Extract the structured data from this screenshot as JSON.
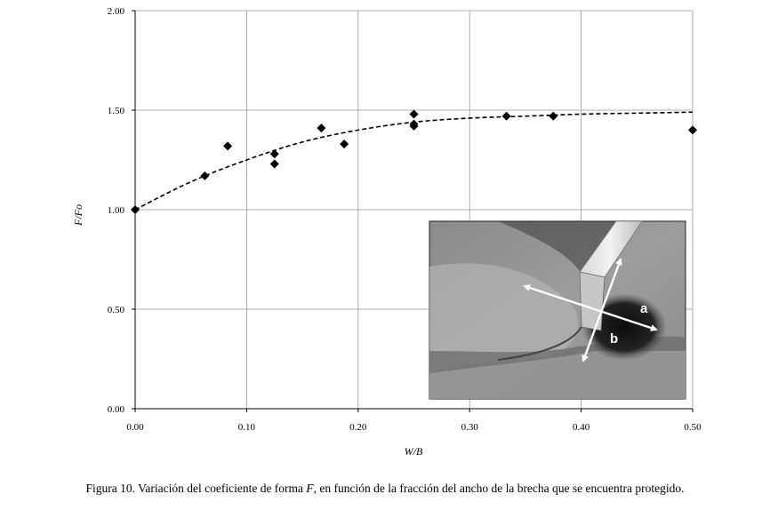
{
  "chart_data": {
    "type": "scatter",
    "xlabel": "W/B",
    "ylabel": "F/Fo",
    "xlim": [
      0,
      0.5
    ],
    "ylim": [
      0,
      2
    ],
    "xticks": [
      "0.00",
      "0.10",
      "0.20",
      "0.30",
      "0.40",
      "0.50"
    ],
    "yticks": [
      "0.00",
      "0.50",
      "1.00",
      "1.50",
      "2.00"
    ],
    "grid": true,
    "points": [
      {
        "x": 0.0,
        "y": 1.0
      },
      {
        "x": 0.0625,
        "y": 1.17
      },
      {
        "x": 0.083,
        "y": 1.32
      },
      {
        "x": 0.125,
        "y": 1.28
      },
      {
        "x": 0.125,
        "y": 1.23
      },
      {
        "x": 0.167,
        "y": 1.41
      },
      {
        "x": 0.1875,
        "y": 1.33
      },
      {
        "x": 0.25,
        "y": 1.48
      },
      {
        "x": 0.25,
        "y": 1.43
      },
      {
        "x": 0.25,
        "y": 1.42
      },
      {
        "x": 0.333,
        "y": 1.47
      },
      {
        "x": 0.375,
        "y": 1.47
      },
      {
        "x": 0.5,
        "y": 1.4
      }
    ],
    "trendline": {
      "style": "dashed",
      "x": [
        0.0,
        0.05,
        0.1,
        0.15,
        0.2,
        0.25,
        0.3,
        0.35,
        0.4,
        0.45,
        0.5
      ],
      "y": [
        1.0,
        1.14,
        1.25,
        1.34,
        1.4,
        1.44,
        1.46,
        1.47,
        1.48,
        1.485,
        1.49
      ]
    }
  },
  "inset_photo": {
    "label_a": "a",
    "label_b": "b"
  },
  "caption": {
    "prefix": "Figura 10. Variación del coeficiente de forma ",
    "variable": "F",
    "suffix": ", en función de la fracción del ancho de la brecha que se encuentra protegido."
  }
}
